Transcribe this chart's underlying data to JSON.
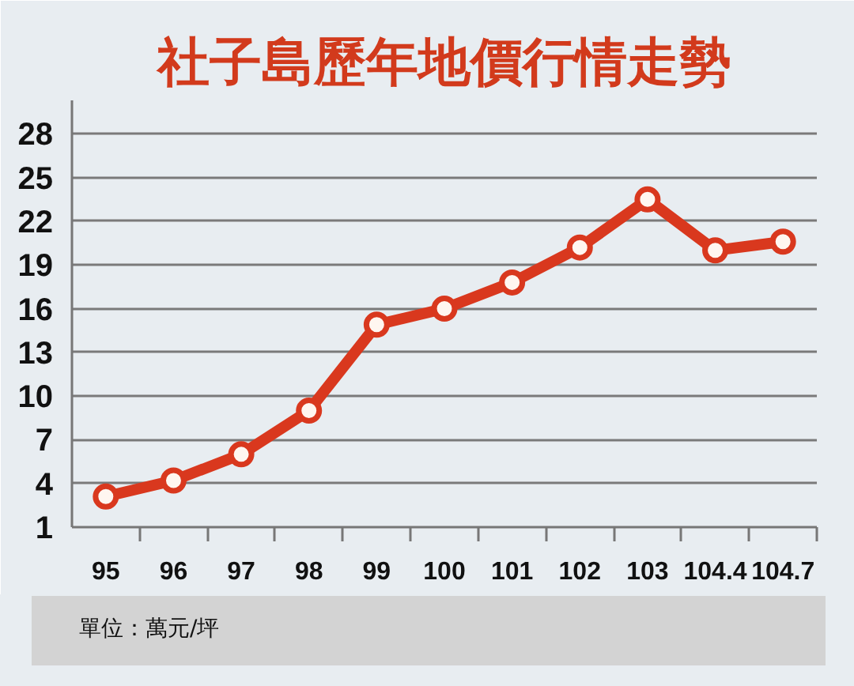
{
  "chart_data": {
    "type": "line",
    "title": "社子島歷年地價行情走勢",
    "categories": [
      "95",
      "96",
      "97",
      "98",
      "99",
      "100",
      "101",
      "102",
      "103",
      "104.4",
      "104.7"
    ],
    "values": [
      3.1,
      4.2,
      6.0,
      9.0,
      14.9,
      16.0,
      17.8,
      20.2,
      23.5,
      20.0,
      20.6
    ],
    "color": "#d9381e",
    "ylim": [
      1,
      30.3
    ],
    "yticks": [
      1,
      4,
      7,
      10,
      13,
      16,
      19,
      22,
      25,
      28
    ],
    "grid": "y",
    "marker": "circle",
    "line_style": "solid",
    "annotations": [
      "單位：萬元/坪"
    ]
  }
}
